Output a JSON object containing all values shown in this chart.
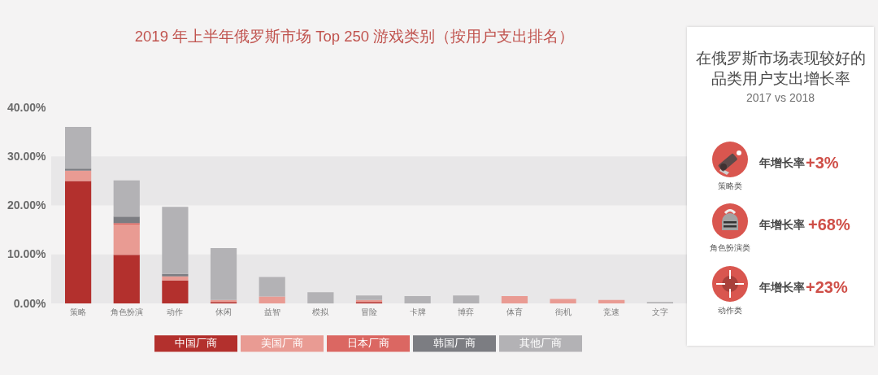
{
  "chart_data": [
    {
      "type": "bar",
      "title": "2019 年上半年俄罗斯市场 Top 250 游戏类别（按用户支出排名）",
      "categories": [
        "策略",
        "角色扮演",
        "动作",
        "休闲",
        "益智",
        "模拟",
        "冒险",
        "卡牌",
        "博弈",
        "体育",
        "街机",
        "竞速",
        "文字"
      ],
      "series": [
        {
          "name": "中国厂商",
          "color": "#b3302d",
          "values": [
            25.0,
            9.9,
            4.7,
            0.3,
            null,
            null,
            0.3,
            null,
            null,
            null,
            null,
            null,
            null
          ]
        },
        {
          "name": "美国厂商",
          "color": "#e99b93",
          "values": [
            2.1,
            6.2,
            0.8,
            0.4,
            1.4,
            null,
            0.4,
            null,
            null,
            1.5,
            0.9,
            0.7,
            null
          ]
        },
        {
          "name": "日本厂商",
          "color": "#db6762",
          "values": [
            null,
            0.3,
            null,
            null,
            null,
            null,
            null,
            null,
            null,
            null,
            null,
            null,
            null
          ]
        },
        {
          "name": "韩国厂商",
          "color": "#7c7d82",
          "values": [
            0.4,
            1.3,
            0.5,
            null,
            null,
            null,
            null,
            null,
            null,
            null,
            null,
            null,
            null
          ]
        },
        {
          "name": "其他厂商",
          "color": "#b3b2b5",
          "values": [
            8.5,
            7.4,
            13.7,
            10.6,
            4.0,
            2.3,
            0.9,
            1.5,
            1.6,
            null,
            null,
            null,
            0.3
          ]
        }
      ],
      "stacked": true,
      "ylim": [
        0,
        40
      ],
      "yticks": [
        {
          "value": 0,
          "label": "0.00%"
        },
        {
          "value": 10,
          "label": "10.00%"
        },
        {
          "value": 20,
          "label": "20.00%"
        },
        {
          "value": 30,
          "label": "30.00%"
        },
        {
          "value": 40,
          "label": "40.00%"
        }
      ],
      "bands": [
        {
          "axis": "y",
          "from": 0,
          "to": 10,
          "color": "#e8e7e8"
        },
        {
          "axis": "y",
          "from": 20,
          "to": 30,
          "color": "#e8e7e8"
        }
      ],
      "legend": "bottom"
    },
    {
      "type": "other",
      "title": "在俄罗斯市场表现较好的品类用户支出增长率",
      "subtitle": "2017 vs 2018",
      "annotations": [
        "年增长率",
        "+3%",
        "策略类",
        "年增长率",
        "+68%",
        "角色扮演类",
        "年增长率",
        "+23%",
        "动作类"
      ]
    }
  ]
}
